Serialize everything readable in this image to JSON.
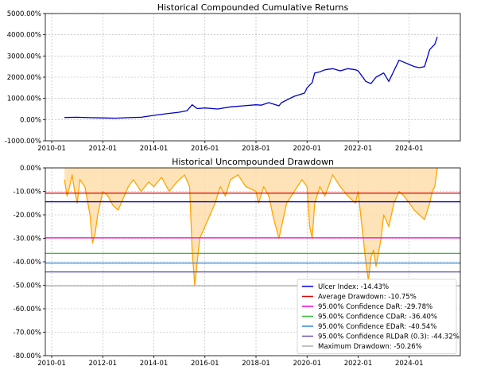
{
  "chart_data": [
    {
      "type": "line",
      "title": "Historical Compounded Cumulative Returns",
      "xlabel": "",
      "ylabel": "",
      "x_ticks": [
        "2010-01",
        "2012-01",
        "2014-01",
        "2016-01",
        "2018-01",
        "2020-01",
        "2022-01",
        "2024-01"
      ],
      "x_tick_values": [
        2010.0,
        2012.0,
        2014.0,
        2016.0,
        2018.0,
        2020.0,
        2022.0,
        2024.0
      ],
      "xlim": [
        2009.75,
        2026.0
      ],
      "y_ticks": [
        "5000.00%",
        "4000.00%",
        "3000.00%",
        "2000.00%",
        "1000.00%",
        "0.00%",
        "-1000.00%"
      ],
      "y_tick_values": [
        5000,
        4000,
        3000,
        2000,
        1000,
        0,
        -1000
      ],
      "ylim": [
        -1000,
        5000
      ],
      "grid": true,
      "series": [
        {
          "color": "#0000cc",
          "x": [
            2010.5,
            2011.0,
            2011.5,
            2012.0,
            2012.5,
            2013.0,
            2013.5,
            2014.0,
            2014.5,
            2015.0,
            2015.3,
            2015.5,
            2015.7,
            2016.0,
            2016.5,
            2017.0,
            2017.5,
            2018.0,
            2018.2,
            2018.5,
            2018.9,
            2019.0,
            2019.5,
            2019.9,
            2020.0,
            2020.2,
            2020.3,
            2020.5,
            2020.7,
            2021.0,
            2021.3,
            2021.6,
            2021.9,
            2022.0,
            2022.3,
            2022.5,
            2022.7,
            2023.0,
            2023.2,
            2023.4,
            2023.6,
            2023.8,
            2024.0,
            2024.2,
            2024.4,
            2024.6,
            2024.8,
            2025.0,
            2025.1
          ],
          "y": [
            100,
            110,
            90,
            80,
            70,
            90,
            110,
            200,
            280,
            350,
            420,
            700,
            520,
            550,
            500,
            600,
            650,
            700,
            680,
            800,
            650,
            800,
            1100,
            1250,
            1500,
            1750,
            2200,
            2250,
            2350,
            2400,
            2300,
            2400,
            2350,
            2300,
            1800,
            1700,
            2000,
            2200,
            1800,
            2300,
            2800,
            2700,
            2600,
            2500,
            2450,
            2500,
            3300,
            3550,
            3900
          ]
        }
      ]
    },
    {
      "type": "area",
      "title": "Historical Uncompounded Drawdown",
      "xlabel": "",
      "ylabel": "",
      "x_ticks": [
        "2010-01",
        "2012-01",
        "2014-01",
        "2016-01",
        "2018-01",
        "2020-01",
        "2022-01",
        "2024-01"
      ],
      "x_tick_values": [
        2010.0,
        2012.0,
        2014.0,
        2016.0,
        2018.0,
        2020.0,
        2022.0,
        2024.0
      ],
      "xlim": [
        2009.75,
        2026.0
      ],
      "y_ticks": [
        "0.00%",
        "-10.00%",
        "-20.00%",
        "-30.00%",
        "-40.00%",
        "-50.00%",
        "-60.00%",
        "-70.00%",
        "-80.00%"
      ],
      "y_tick_values": [
        0,
        -10,
        -20,
        -30,
        -40,
        -50,
        -60,
        -70,
        -80
      ],
      "ylim": [
        -80,
        0
      ],
      "grid": true,
      "legend_position": "bottom-right",
      "series": [
        {
          "color": "#ffa500",
          "x": [
            2010.5,
            2010.6,
            2010.7,
            2010.8,
            2010.9,
            2011.0,
            2011.1,
            2011.3,
            2011.5,
            2011.6,
            2011.7,
            2011.8,
            2011.9,
            2012.0,
            2012.2,
            2012.4,
            2012.6,
            2012.8,
            2013.0,
            2013.2,
            2013.5,
            2013.8,
            2014.0,
            2014.3,
            2014.6,
            2014.9,
            2015.2,
            2015.4,
            2015.5,
            2015.6,
            2015.7,
            2015.8,
            2016.0,
            2016.2,
            2016.4,
            2016.6,
            2016.8,
            2017.0,
            2017.3,
            2017.6,
            2018.0,
            2018.1,
            2018.3,
            2018.5,
            2018.7,
            2018.9,
            2019.0,
            2019.2,
            2019.5,
            2019.8,
            2020.0,
            2020.1,
            2020.2,
            2020.3,
            2020.5,
            2020.7,
            2020.9,
            2021.0,
            2021.3,
            2021.6,
            2021.9,
            2022.0,
            2022.1,
            2022.2,
            2022.3,
            2022.4,
            2022.5,
            2022.6,
            2022.7,
            2022.9,
            2023.0,
            2023.2,
            2023.4,
            2023.6,
            2023.8,
            2024.0,
            2024.2,
            2024.4,
            2024.6,
            2024.8,
            2024.9,
            2025.0,
            2025.1
          ],
          "y": [
            -5,
            -12,
            -8,
            -3,
            -10,
            -15,
            -5,
            -8,
            -20,
            -32,
            -28,
            -20,
            -15,
            -10,
            -12,
            -16,
            -18,
            -13,
            -8,
            -5,
            -10,
            -6,
            -8,
            -4,
            -10,
            -6,
            -3,
            -8,
            -35,
            -50,
            -40,
            -30,
            -25,
            -20,
            -15,
            -8,
            -12,
            -5,
            -3,
            -8,
            -10,
            -15,
            -8,
            -12,
            -22,
            -30,
            -25,
            -15,
            -10,
            -5,
            -8,
            -25,
            -30,
            -15,
            -8,
            -12,
            -6,
            -3,
            -8,
            -12,
            -15,
            -10,
            -20,
            -30,
            -40,
            -48,
            -38,
            -35,
            -42,
            -30,
            -20,
            -25,
            -15,
            -10,
            -12,
            -15,
            -18,
            -20,
            -22,
            -15,
            -10,
            -8,
            0
          ]
        }
      ],
      "reference_lines": [
        {
          "label": "Ulcer Index: -14.43%",
          "value": -14.43,
          "color": "#0000cc"
        },
        {
          "label": "Average Drawdown: -10.75%",
          "value": -10.75,
          "color": "#dd0000"
        },
        {
          "label": "95.00% Confidence DaR: -29.78%",
          "value": -29.78,
          "color": "#ee00ee"
        },
        {
          "label": "95.00% Confidence CDaR: -36.40%",
          "value": -36.4,
          "color": "#33bb33"
        },
        {
          "label": "95.00% Confidence EDaR: -40.54%",
          "value": -40.54,
          "color": "#3388dd"
        },
        {
          "label": "95.00% Confidence RLDaR (0.3): -44.32%",
          "value": -44.32,
          "color": "#6655aa"
        },
        {
          "label": "Maximum Drawdown: -50.26%",
          "value": -50.26,
          "color": "#aaaaaa"
        }
      ]
    }
  ]
}
